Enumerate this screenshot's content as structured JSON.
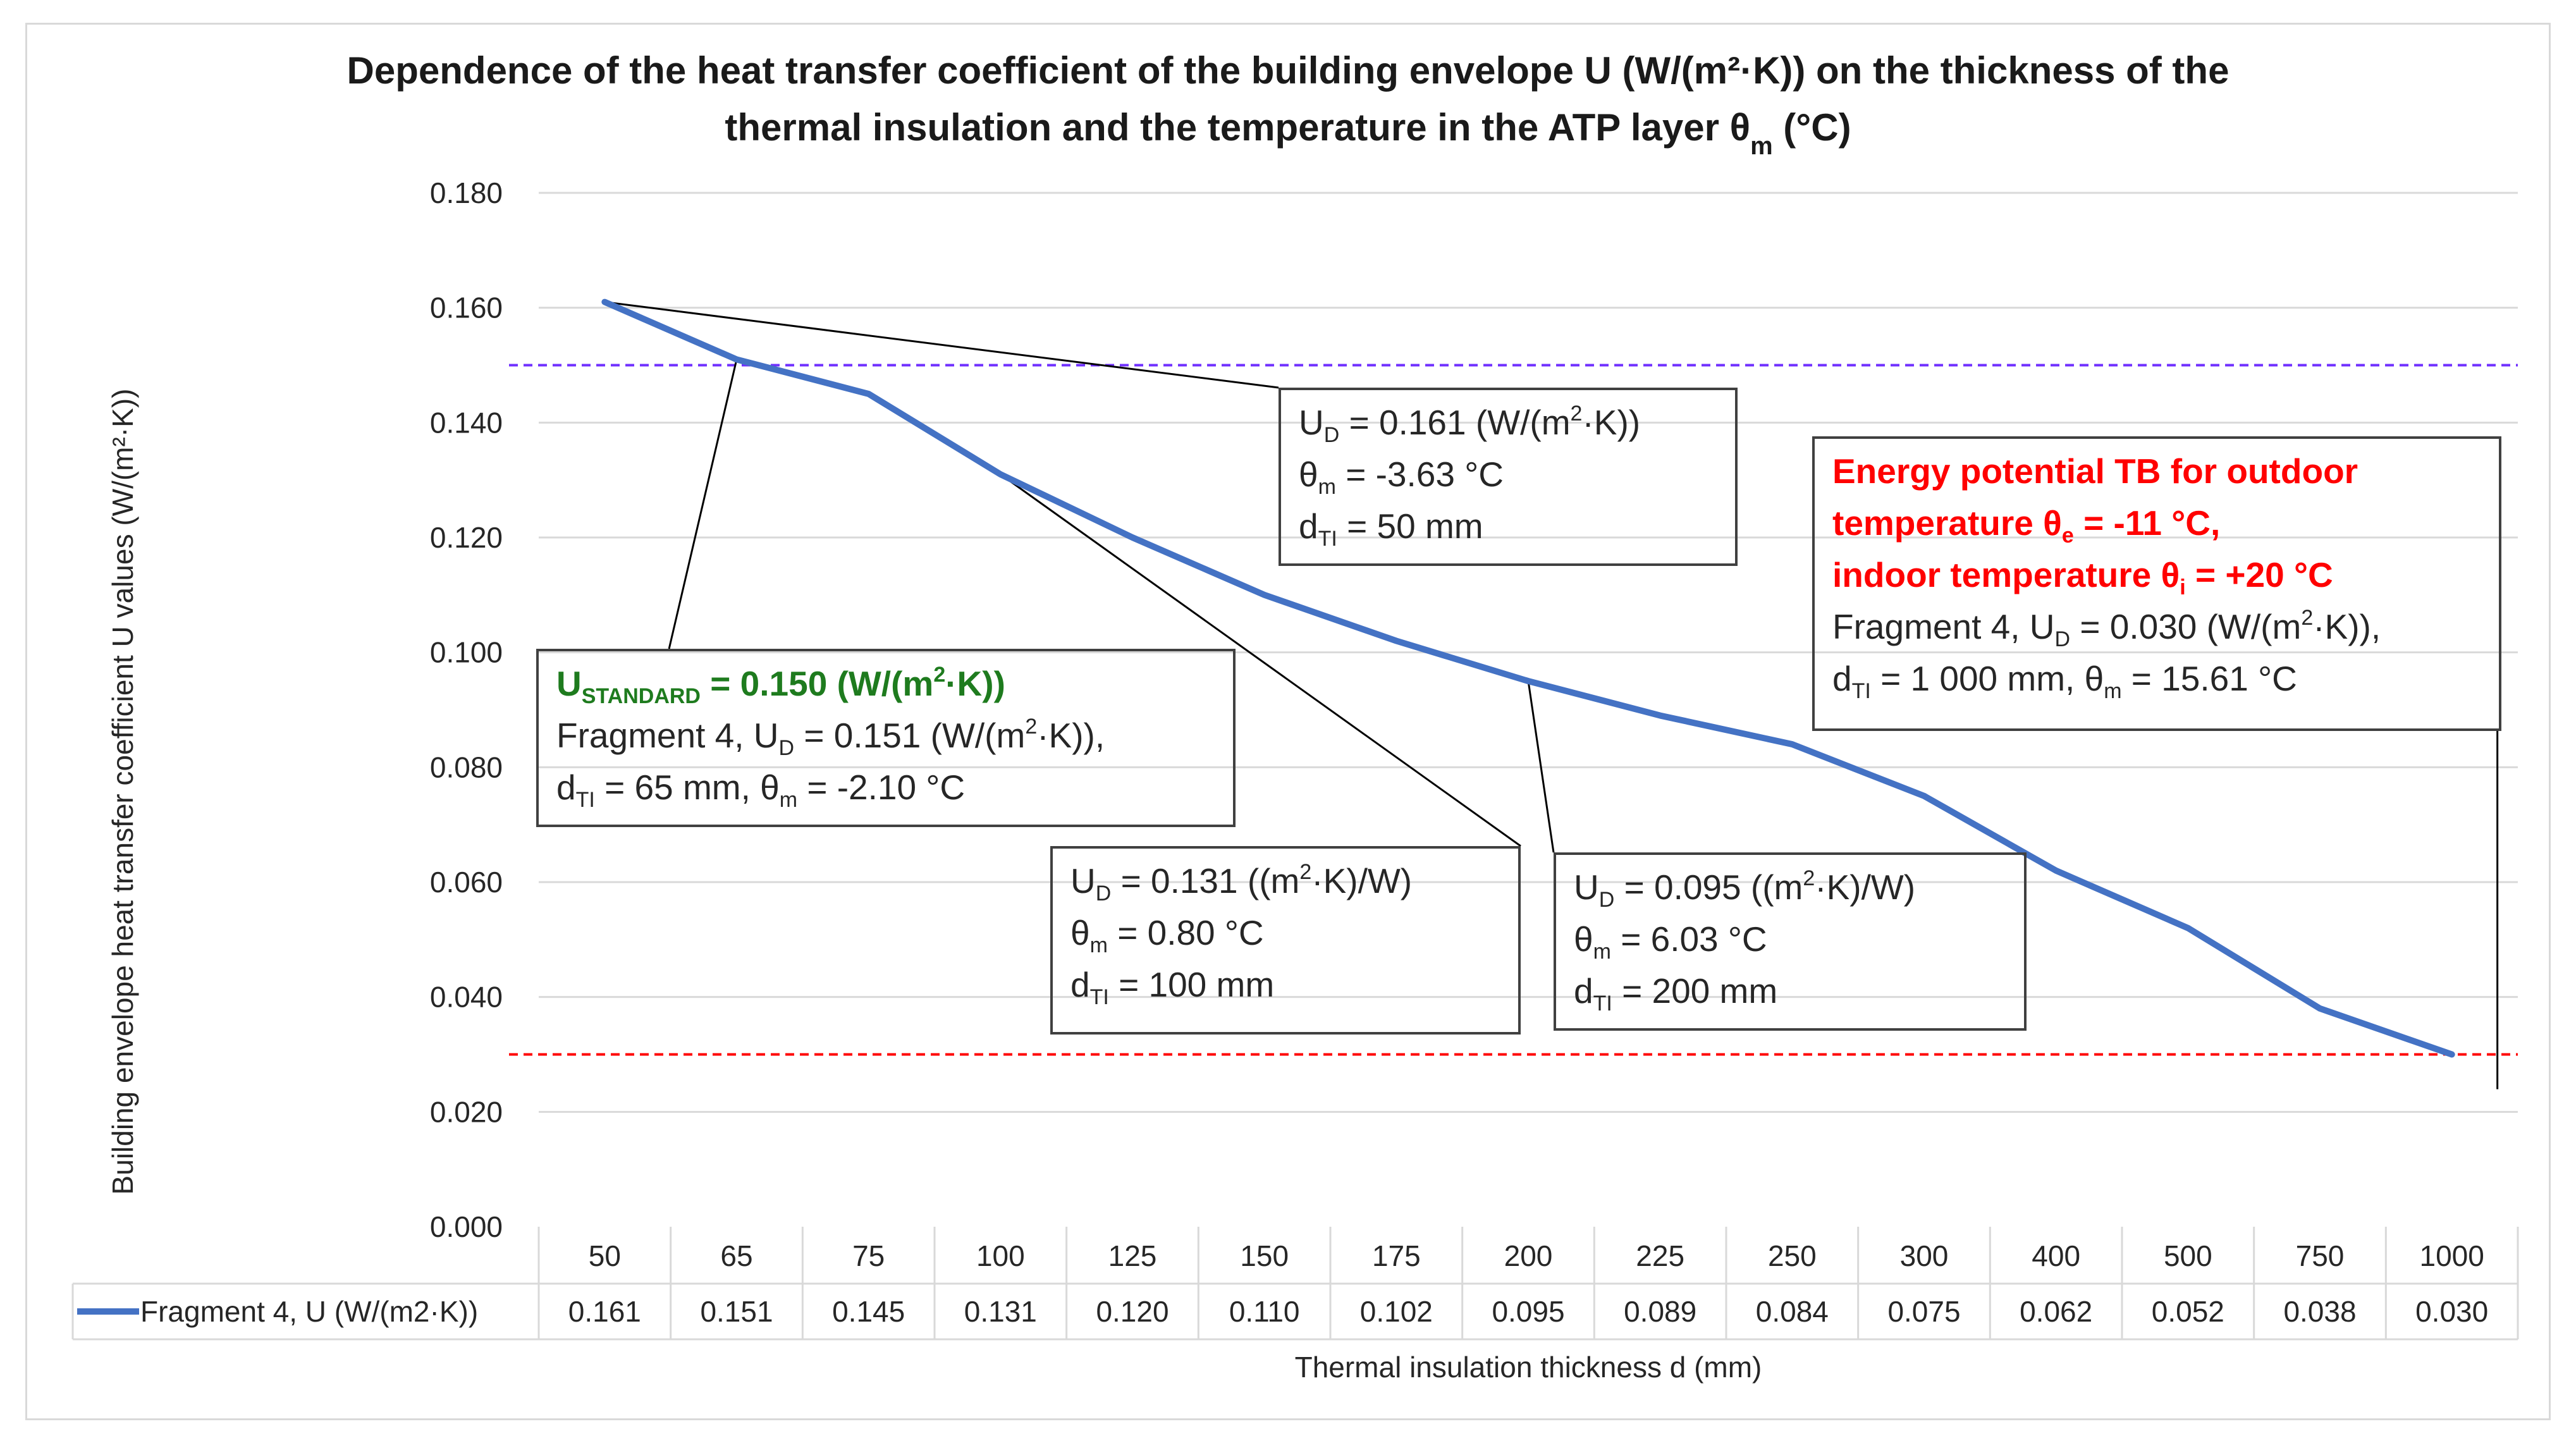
{
  "chart_data": {
    "type": "line",
    "title": "Dependence of the heat transfer coefficient of the building envelope U (W/(m²·K)) on the thickness of the thermal insulation and the temperature in the ATP layer θm (°C)",
    "title_line1": "Dependence of the heat transfer coefficient of the building envelope U (W/(m²·K)) on the thickness of the",
    "title_line2_prefix": "thermal insulation and the temperature in the ATP layer θ",
    "title_line2_sub": "m",
    "title_line2_suffix": " (°C)",
    "xlabel": "Thermal insulation thickness d (mm)",
    "ylabel": "Building envelope heat transfer coefficient U values (W/(m²·K))",
    "ylim": [
      0,
      0.18
    ],
    "yticks": [
      0.0,
      0.02,
      0.04,
      0.06,
      0.08,
      0.1,
      0.12,
      0.14,
      0.16,
      0.18
    ],
    "ytick_labels": [
      "0.000",
      "0.020",
      "0.040",
      "0.060",
      "0.080",
      "0.100",
      "0.120",
      "0.140",
      "0.160",
      "0.180"
    ],
    "categories": [
      "50",
      "65",
      "75",
      "100",
      "125",
      "150",
      "175",
      "200",
      "225",
      "250",
      "300",
      "400",
      "500",
      "750",
      "1000"
    ],
    "series": [
      {
        "name": "Fragment 4, U (W/(m2·K))",
        "color": "#4472c4",
        "values": [
          0.161,
          0.151,
          0.145,
          0.131,
          0.12,
          0.11,
          0.102,
          0.095,
          0.089,
          0.084,
          0.075,
          0.062,
          0.052,
          0.038,
          0.03
        ],
        "value_labels": [
          "0.161",
          "0.151",
          "0.145",
          "0.131",
          "0.120",
          "0.110",
          "0.102",
          "0.095",
          "0.089",
          "0.084",
          "0.075",
          "0.062",
          "0.052",
          "0.038",
          "0.030"
        ]
      }
    ],
    "reference_lines": [
      {
        "name": "U standard",
        "value": 0.15,
        "color": "#7030ff"
      },
      {
        "name": "Energy potential",
        "value": 0.03,
        "color": "#ff0000"
      }
    ],
    "grid": true,
    "legend": "data-table-bottom"
  },
  "annotations": {
    "a50": {
      "target_index": 0,
      "color": "#999999",
      "l1_pre": "U",
      "l1_sub": "D",
      "l1_post": " = 0.161 (W/(m",
      "l1_sup": "2",
      "l1_end": "·K))",
      "l2_pre": "θ",
      "l2_sub": "m",
      "l2_post": " = -3.63 °C",
      "l3_pre": "d",
      "l3_sub": "TI",
      "l3_post": " = 50 mm"
    },
    "a65": {
      "target_index": 1,
      "color": "#ccccff",
      "l1_pre": "U",
      "l1_sub": "STANDARD",
      "l1_post": " = 0.150 (W/(m",
      "l1_sup": "2",
      "l1_end": "·K))",
      "l2_pre": "Fragment 4, U",
      "l2_sub": "D",
      "l2_post": " = 0.151 (W/(m",
      "l2_sup": "2",
      "l2_end": "·K)),",
      "l3_pre": "d",
      "l3_sub": "TI",
      "l3_mid": " = 65 mm, θ",
      "l3_sub2": "m",
      "l3_post": " = -2.10 °C"
    },
    "a100": {
      "target_index": 3,
      "color": "#ff9966",
      "l1_pre": "U",
      "l1_sub": "D",
      "l1_post": " = 0.131 ((m",
      "l1_sup": "2",
      "l1_end": "·K)/W)",
      "l2_pre": "θ",
      "l2_sub": "m",
      "l2_post": " = 0.80 °C",
      "l3_pre": "d",
      "l3_sub": "TI",
      "l3_post": " = 100 mm"
    },
    "a200": {
      "target_index": 7,
      "color": "#bdd7ee",
      "l1_pre": "U",
      "l1_sub": "D",
      "l1_post": " = 0.095 ((m",
      "l1_sup": "2",
      "l1_end": "·K)/W)",
      "l2_pre": "θ",
      "l2_sub": "m",
      "l2_post": " = 6.03 °C",
      "l3_pre": "d",
      "l3_sub": "TI",
      "l3_post": " = 200 mm"
    },
    "a1000": {
      "target_index": 14,
      "color": "#fbe5d6",
      "r1": "Energy potential TB for outdoor",
      "r2_pre": "temperature θ",
      "r2_sub": "e",
      "r2_post": " = -11 °C,",
      "r3_pre": "indoor temperature θ",
      "r3_sub": "i",
      "r3_post": " = +20 °C",
      "l4_pre": "Fragment 4, U",
      "l4_sub": "D",
      "l4_post": " = 0.030 (W/(m",
      "l4_sup": "2",
      "l4_end": "·K)),",
      "l5_pre": "d",
      "l5_sub": "TI",
      "l5_mid": " = 1 000 mm, θ",
      "l5_sub2": "m",
      "l5_post": " = 15.61 °C"
    }
  }
}
